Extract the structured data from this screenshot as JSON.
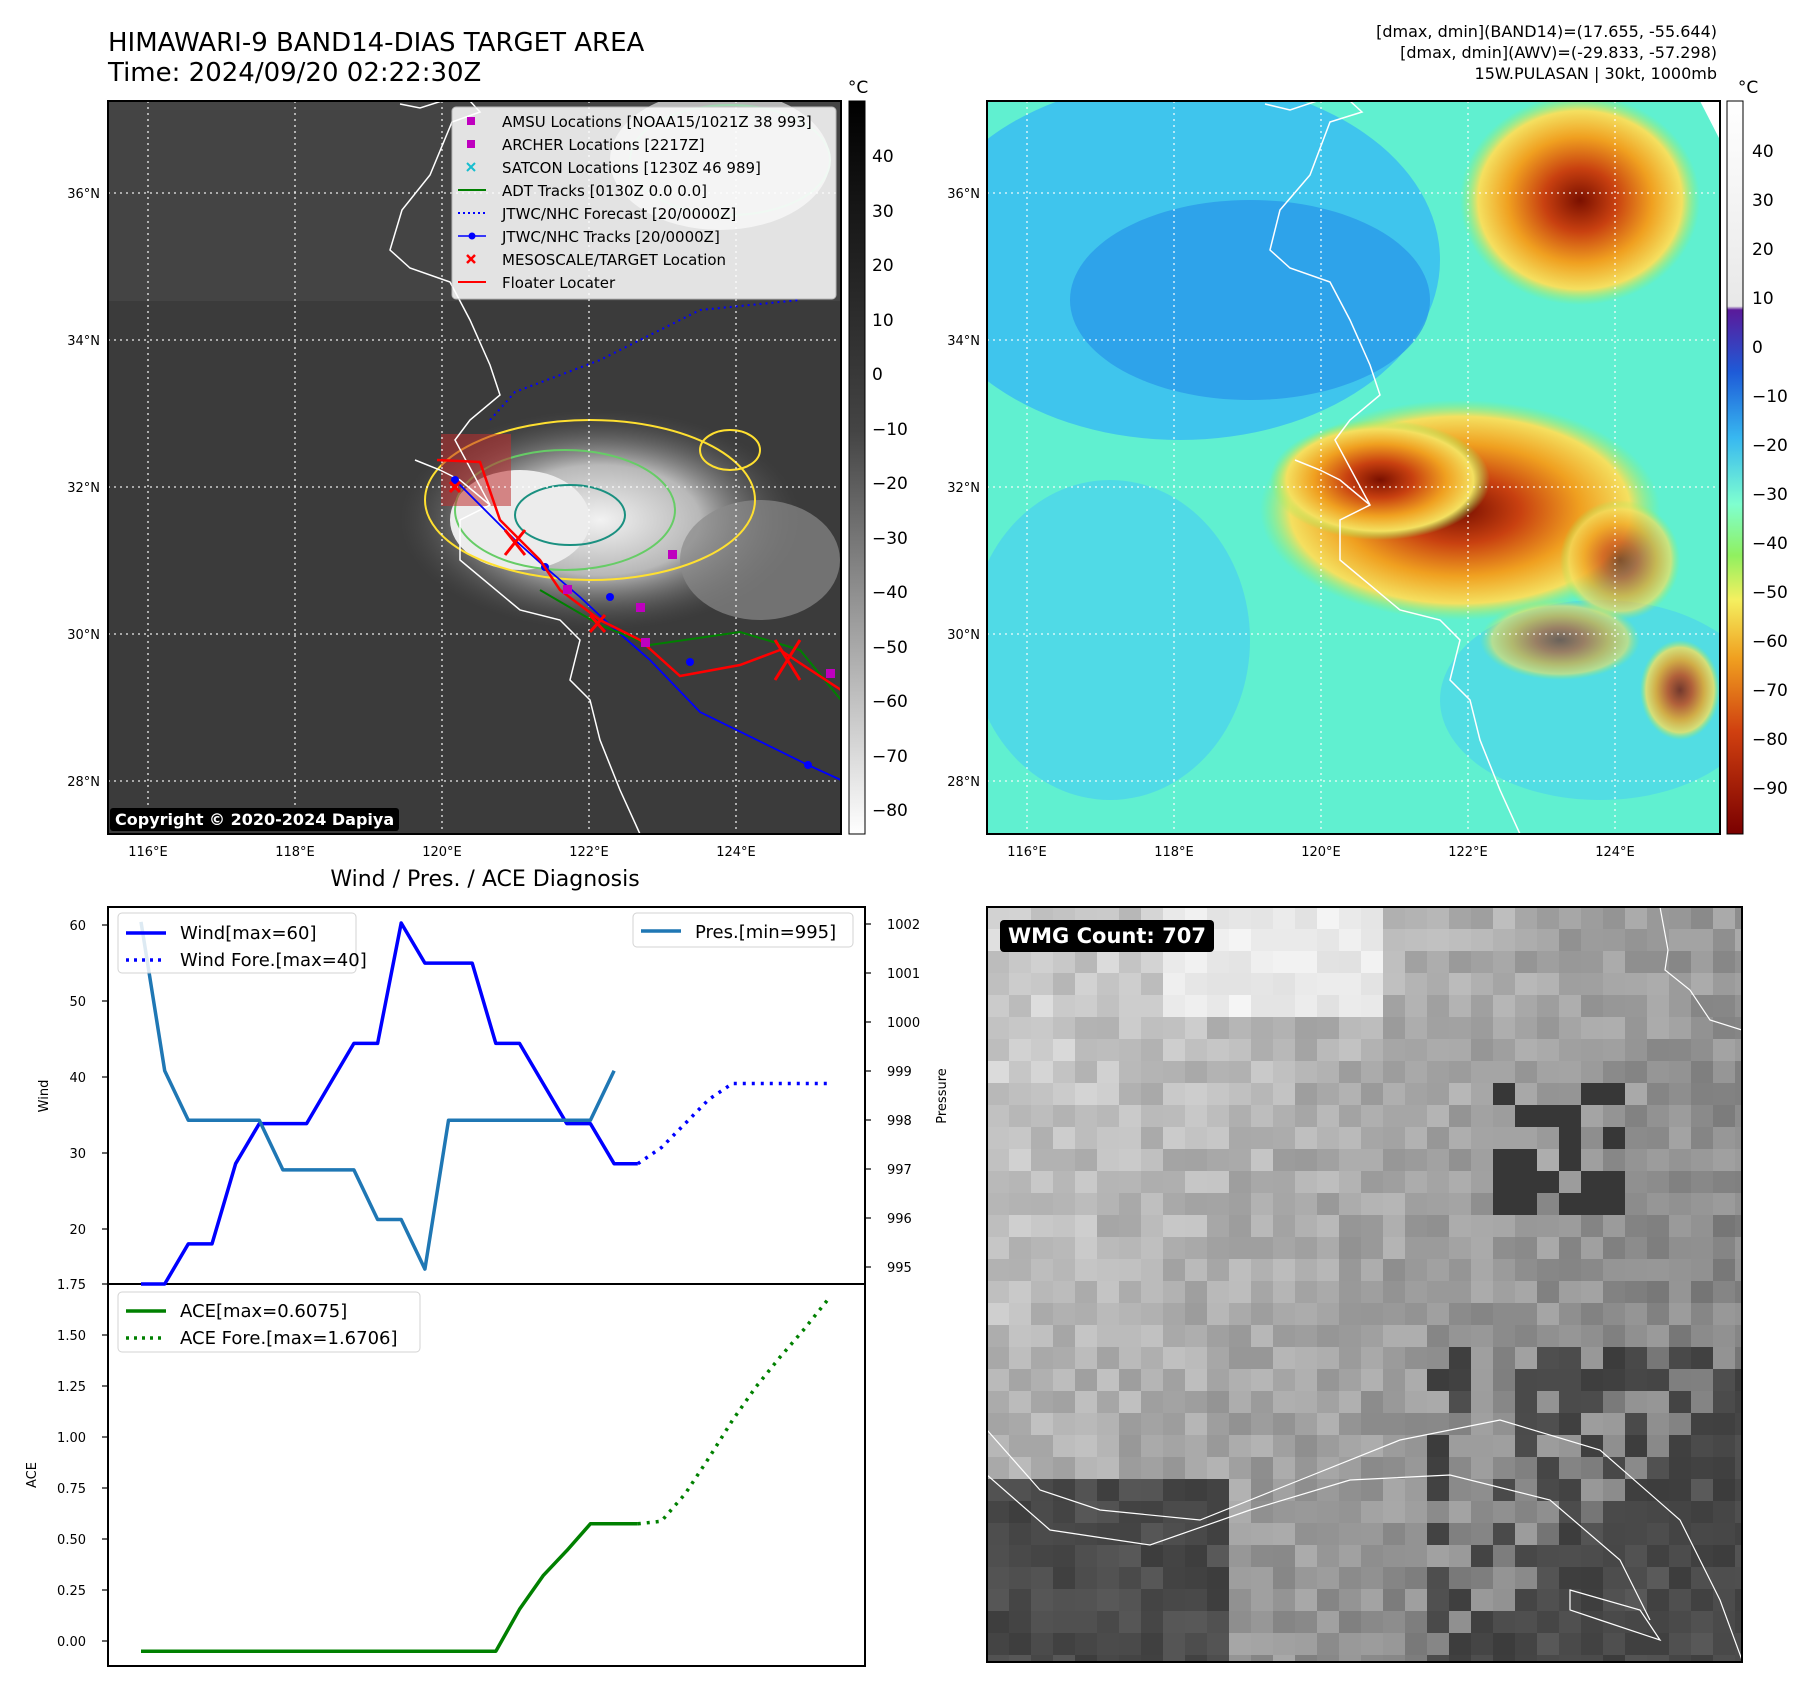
{
  "header": {
    "title_line1": "HIMAWARI-9 BAND14-DIAS TARGET AREA",
    "title_line2": "Time: 2024/09/20 02:22:30Z",
    "info_line1": "[dmax, dmin](BAND14)=(17.655, -55.644)",
    "info_line2": "[dmax, dmin](AWV)=(-29.833, -57.298)",
    "info_line3": "15W.PULASAN | 30kt, 1000mb"
  },
  "maps": {
    "unit": "°C",
    "lat_labels": [
      "36°N",
      "34°N",
      "32°N",
      "30°N",
      "28°N"
    ],
    "lon_labels": [
      "116°E",
      "118°E",
      "120°E",
      "122°E",
      "124°E"
    ],
    "copyright": "Copyright © 2020-2024 Dapiya",
    "left_colorbar_ticks": [
      "40",
      "30",
      "20",
      "10",
      "0",
      "−10",
      "−20",
      "−30",
      "−40",
      "−50",
      "−60",
      "−70",
      "−80"
    ],
    "right_colorbar_ticks": [
      "40",
      "30",
      "20",
      "10",
      "0",
      "−10",
      "−20",
      "−30",
      "−40",
      "−50",
      "−60",
      "−70",
      "−80",
      "−90"
    ],
    "legend": [
      {
        "label": "AMSU Locations [NOAA15/1021Z 38 993]",
        "marker": "square",
        "color": "#bf00bf"
      },
      {
        "label": "ARCHER Locations [2217Z]",
        "marker": "square",
        "color": "#bf00bf"
      },
      {
        "label": "SATCON Locations [1230Z 46 989]",
        "marker": "x",
        "color": "#17becf"
      },
      {
        "label": "ADT Tracks [0130Z 0.0 0.0]",
        "marker": "line",
        "color": "#008000"
      },
      {
        "label": "JTWC/NHC Forecast [20/0000Z]",
        "marker": "dotted",
        "color": "#0000ff"
      },
      {
        "label": "JTWC/NHC Tracks [20/0000Z]",
        "marker": "line-dot",
        "color": "#0000ff"
      },
      {
        "label": "MESOSCALE/TARGET Location",
        "marker": "x",
        "color": "#ff0000"
      },
      {
        "label": "Floater Locater",
        "marker": "line",
        "color": "#ff0000"
      }
    ]
  },
  "diagnosis": {
    "title": "Wind / Pres. / ACE Diagnosis",
    "wind_ylabel": "Wind",
    "pres_ylabel": "Pressure",
    "ace_ylabel": "ACE",
    "wind_ticks": [
      "60",
      "50",
      "40",
      "30",
      "20"
    ],
    "pres_ticks": [
      "1002",
      "1001",
      "1000",
      "999",
      "998",
      "997",
      "996",
      "995"
    ],
    "ace_ticks": [
      "1.75",
      "1.50",
      "1.25",
      "1.00",
      "0.75",
      "0.50",
      "0.25",
      "0.00"
    ],
    "legend_wind": "Wind[max=60]",
    "legend_wind_fore": "Wind Fore.[max=40]",
    "legend_pres": "Pres.[min=995]",
    "legend_ace": "ACE[max=0.6075]",
    "legend_ace_fore": "ACE Fore.[max=1.6706]"
  },
  "wmg": {
    "label": "WMG Count: 707"
  },
  "colors": {
    "wind": "#0000ff",
    "pressure": "#1f77b4",
    "ace": "#008000"
  },
  "chart_data": [
    {
      "type": "line",
      "name": "wind",
      "ylim": [
        15,
        62
      ],
      "x": [
        0,
        1,
        2,
        3,
        4,
        5,
        6,
        7,
        8,
        9,
        10,
        11,
        12,
        13,
        14,
        15,
        16,
        17,
        18,
        19,
        20,
        21
      ],
      "values": [
        15,
        15,
        20,
        20,
        30,
        35,
        35,
        35,
        40,
        45,
        45,
        60,
        55,
        55,
        55,
        45,
        45,
        40,
        35,
        35,
        30,
        30
      ],
      "forecast_x": [
        21,
        22,
        23,
        24,
        25,
        26,
        27,
        28,
        29
      ],
      "forecast_values": [
        30,
        32,
        35,
        38,
        40,
        40,
        40,
        40,
        40
      ]
    },
    {
      "type": "line",
      "name": "pressure",
      "ylim": [
        994.7,
        1002.3
      ],
      "x": [
        0,
        1,
        2,
        3,
        4,
        5,
        6,
        7,
        8,
        9,
        10,
        11,
        12,
        13,
        14,
        15,
        16,
        17,
        18,
        19,
        20
      ],
      "values": [
        1002,
        999,
        998,
        998,
        998,
        998,
        997,
        997,
        997,
        997,
        996,
        996,
        995,
        998,
        998,
        998,
        998,
        998,
        998,
        998,
        999
      ]
    },
    {
      "type": "line",
      "name": "ace",
      "ylim": [
        -0.07,
        1.75
      ],
      "x": [
        0,
        1,
        2,
        3,
        4,
        5,
        6,
        7,
        8,
        9,
        10,
        11,
        12,
        13,
        14,
        15,
        16,
        17,
        18,
        19,
        20,
        21
      ],
      "values": [
        0,
        0,
        0,
        0,
        0,
        0,
        0,
        0,
        0,
        0,
        0,
        0,
        0,
        0,
        0,
        0,
        0.2,
        0.36,
        0.48,
        0.6075,
        0.6075,
        0.6075
      ],
      "forecast_x": [
        21,
        22,
        23,
        24,
        25,
        26,
        27,
        28,
        29
      ],
      "forecast_values": [
        0.6075,
        0.62,
        0.75,
        0.92,
        1.1,
        1.26,
        1.4,
        1.53,
        1.6706
      ]
    }
  ]
}
